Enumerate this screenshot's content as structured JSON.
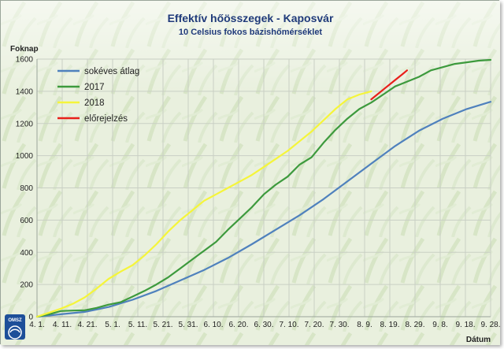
{
  "chart_data": {
    "type": "line",
    "title": "Effektív hőösszegek - Kaposvár",
    "subtitle": "10 Celsius fokos bázishőmérséklet",
    "ylabel": "Foknap",
    "xlabel": "Dátum",
    "ylim": [
      0,
      1600
    ],
    "y_ticks": [
      0,
      200,
      400,
      600,
      800,
      1000,
      1200,
      1400,
      1600
    ],
    "x_ticks": [
      "4. 1.",
      "4. 11.",
      "4. 21.",
      "5. 1.",
      "5. 11.",
      "5. 21.",
      "5. 31.",
      "6. 10.",
      "6. 20.",
      "6. 30.",
      "7. 10.",
      "7. 20.",
      "7. 30.",
      "8. 9.",
      "8. 19.",
      "8. 29.",
      "9. 8.",
      "9. 18.",
      "9. 28."
    ],
    "x_unit": "day index from 4. 1.",
    "xlim": [
      0,
      190
    ],
    "grid": true,
    "legend_position": "top-left",
    "series": [
      {
        "name": "sokéves átlag",
        "color": "#4f81bd",
        "x": [
          0,
          10,
          20,
          30,
          40,
          50,
          60,
          70,
          80,
          90,
          100,
          110,
          120,
          130,
          140,
          150,
          160,
          170,
          180,
          190
        ],
        "values": [
          0,
          15,
          30,
          60,
          105,
          160,
          225,
          290,
          365,
          450,
          540,
          630,
          730,
          840,
          950,
          1060,
          1155,
          1230,
          1290,
          1335
        ]
      },
      {
        "name": "2017",
        "color": "#3d9a3d",
        "x": [
          0,
          5,
          10,
          15,
          20,
          25,
          30,
          35,
          40,
          45,
          50,
          55,
          60,
          65,
          70,
          75,
          80,
          85,
          90,
          95,
          100,
          105,
          110,
          115,
          120,
          125,
          130,
          135,
          140,
          145,
          150,
          155,
          160,
          165,
          170,
          175,
          180,
          185,
          190
        ],
        "values": [
          0,
          15,
          35,
          38,
          40,
          55,
          75,
          90,
          125,
          160,
          200,
          245,
          300,
          355,
          410,
          465,
          540,
          610,
          680,
          760,
          820,
          870,
          945,
          990,
          1080,
          1160,
          1230,
          1290,
          1330,
          1380,
          1430,
          1460,
          1490,
          1530,
          1550,
          1570,
          1580,
          1590,
          1595
        ]
      },
      {
        "name": "2018",
        "color": "#f5f53a",
        "x": [
          0,
          5,
          10,
          15,
          20,
          25,
          30,
          35,
          40,
          45,
          50,
          55,
          60,
          65,
          70,
          75,
          80,
          85,
          90,
          95,
          100,
          105,
          110,
          115,
          120,
          125,
          130,
          135,
          140
        ],
        "values": [
          0,
          25,
          50,
          80,
          120,
          175,
          235,
          280,
          320,
          380,
          450,
          530,
          600,
          660,
          720,
          760,
          800,
          840,
          880,
          930,
          980,
          1030,
          1090,
          1150,
          1220,
          1290,
          1350,
          1380,
          1400
        ]
      },
      {
        "name": "előrejelzés",
        "color": "#e8201a",
        "x": [
          140,
          145,
          150,
          153,
          155
        ],
        "values": [
          1350,
          1410,
          1470,
          1505,
          1530
        ]
      }
    ]
  },
  "logo_text": "OMSZ"
}
